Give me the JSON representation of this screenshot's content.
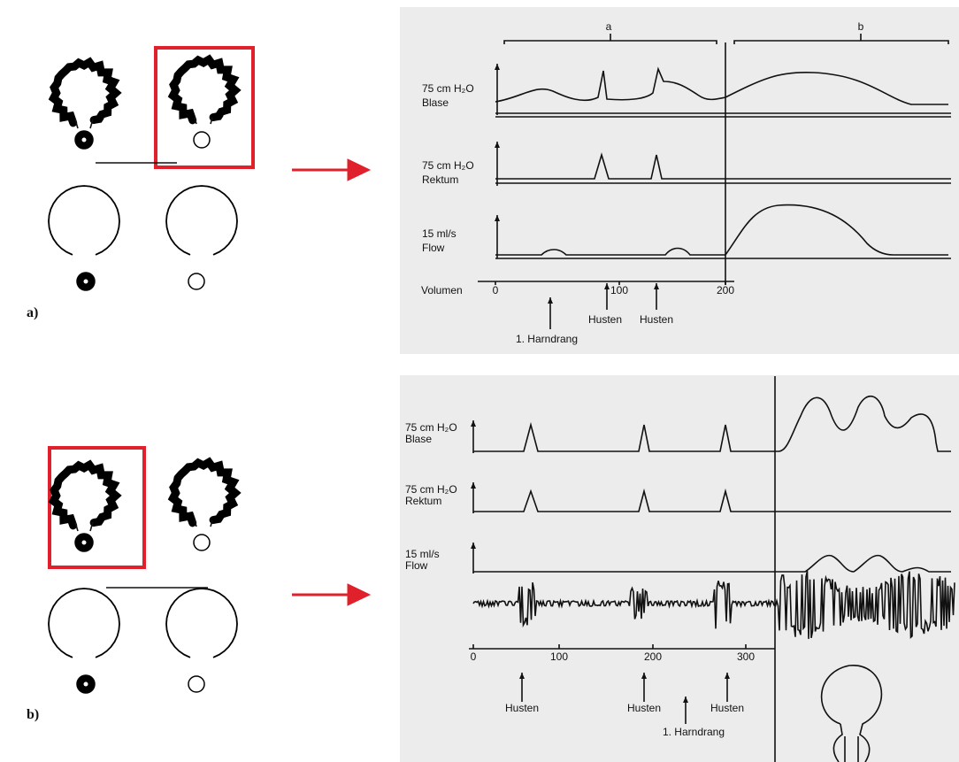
{
  "panels": [
    {
      "label": "a)",
      "phases": [
        "a",
        "b"
      ],
      "channels": [
        {
          "scale": "75 cm H₂O",
          "name": "Blase"
        },
        {
          "scale": "75 cm H₂O",
          "name": "Rektum"
        },
        {
          "scale": "15 ml/s",
          "name": "Flow"
        }
      ],
      "axis_title": "Volumen",
      "ticks": [
        "0",
        "100",
        "200"
      ],
      "events": [
        "1. Harndrang",
        "Husten",
        "Husten"
      ]
    },
    {
      "label": "b)",
      "channels": [
        {
          "scale": "75 cm H₂O",
          "name": "Blase"
        },
        {
          "scale": "75 cm H₂O",
          "name": "Rektum"
        },
        {
          "scale": "15 ml/s",
          "name": "Flow"
        }
      ],
      "ticks": [
        "0",
        "100",
        "200",
        "300"
      ],
      "events": [
        "Husten",
        "Husten",
        "Husten",
        "1. Harndrang"
      ]
    }
  ]
}
